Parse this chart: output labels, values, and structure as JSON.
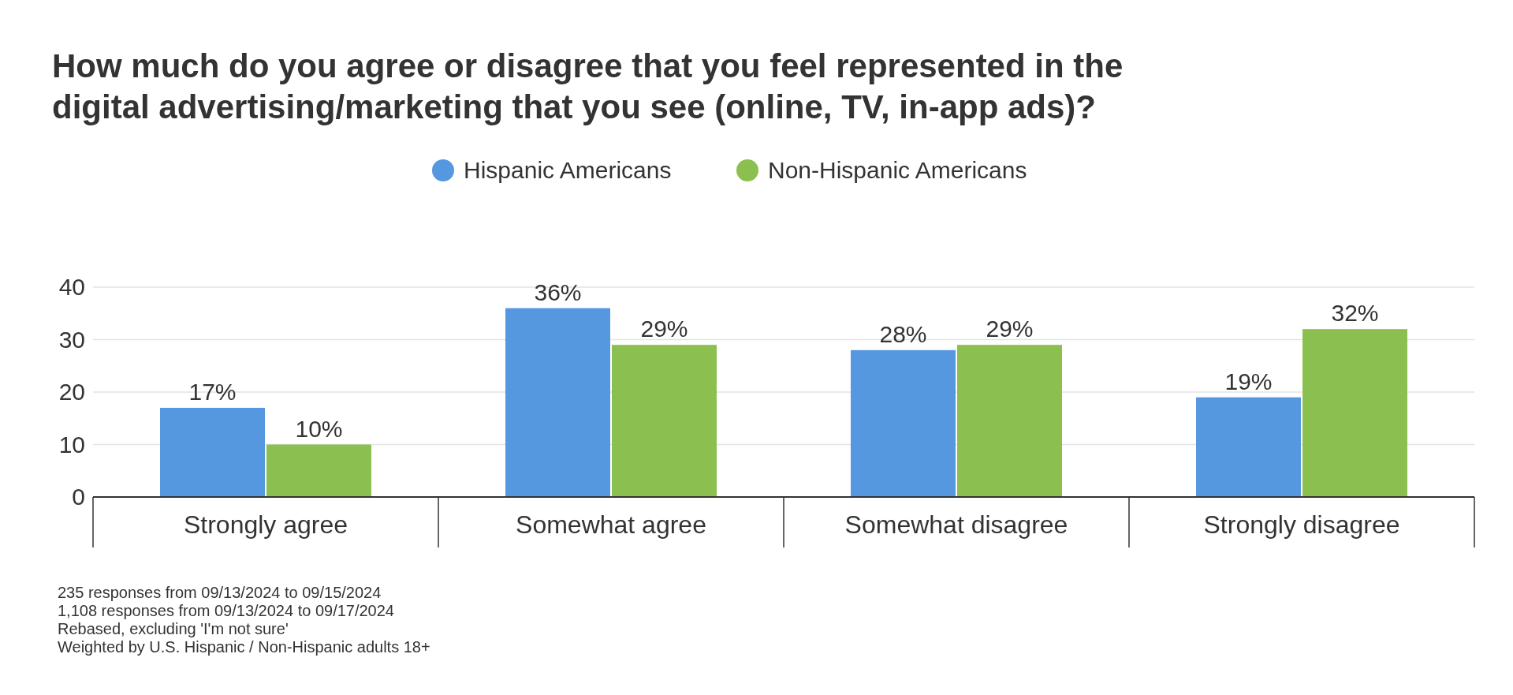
{
  "chart_data": {
    "type": "bar",
    "title": "How much do you agree or disagree that you feel represented in the digital advertising/marketing that you see (online, TV, in-app ads)?",
    "categories": [
      "Strongly agree",
      "Somewhat agree",
      "Somewhat disagree",
      "Strongly disagree"
    ],
    "series": [
      {
        "name": "Hispanic Americans",
        "color": "#5598e0",
        "values": [
          17,
          36,
          28,
          19
        ],
        "value_labels": [
          "17%",
          "36%",
          "28%",
          "19%"
        ]
      },
      {
        "name": "Non-Hispanic Americans",
        "color": "#8bc051",
        "values": [
          10,
          29,
          29,
          32
        ],
        "value_labels": [
          "10%",
          "29%",
          "29%",
          "32%"
        ]
      }
    ],
    "ylim": [
      0,
      40
    ],
    "yticks": [
      0,
      10,
      20,
      30,
      40
    ],
    "grid": "y",
    "legend": "top",
    "annotations": [
      "235 responses from 09/13/2024 to 09/15/2024",
      "1,108 responses from 09/13/2024 to 09/17/2024",
      "Rebased, excluding 'I'm not sure'",
      "Weighted by U.S. Hispanic / Non-Hispanic adults 18+"
    ]
  }
}
